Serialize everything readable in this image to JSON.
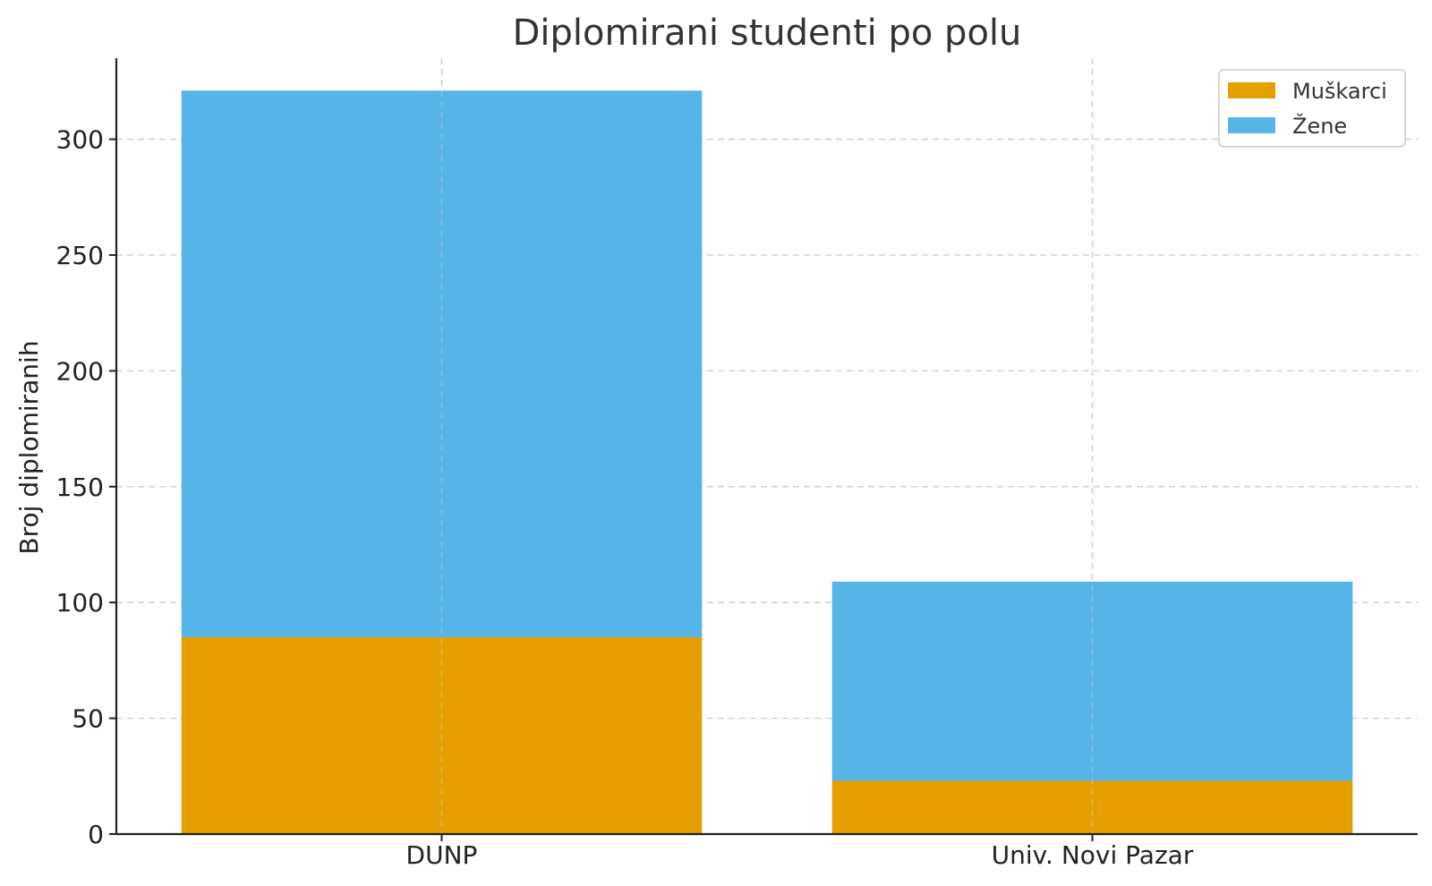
{
  "chart_data": {
    "type": "bar",
    "stacked": true,
    "title": "Diplomirani studenti po polu",
    "xlabel": "",
    "ylabel": "Broj diplomiranih",
    "categories": [
      "DUNP",
      "Univ. Novi Pazar"
    ],
    "series": [
      {
        "name": "Muškarci",
        "values": [
          85,
          23
        ],
        "color": "#E69F00"
      },
      {
        "name": "Žene",
        "values": [
          236,
          86
        ],
        "color": "#56B4E9"
      }
    ],
    "ylim": [
      0,
      335
    ],
    "yticks": [
      0,
      50,
      100,
      150,
      200,
      250,
      300
    ],
    "grid": true,
    "legend_position": "top-right"
  }
}
